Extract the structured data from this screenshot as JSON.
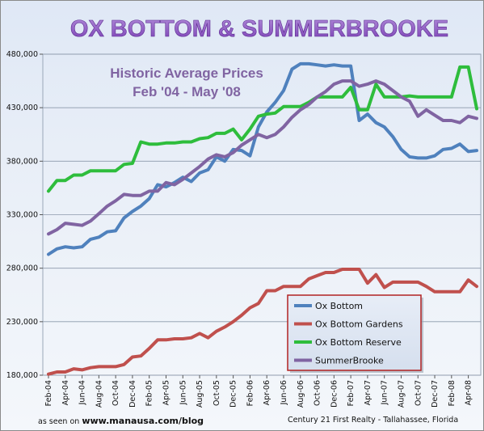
{
  "chart_data": {
    "type": "line",
    "title": "OX BOTTOM & SUMMERBROOKE",
    "subtitle_line1": "Historic Average Prices",
    "subtitle_line2": "Feb '04 - May '08",
    "ylim": [
      180000,
      480000
    ],
    "yticks": [
      "180,000",
      "230,000",
      "280,000",
      "330,000",
      "380,000",
      "430,000",
      "480,000"
    ],
    "ytick_values": [
      180000,
      230000,
      280000,
      330000,
      380000,
      430000,
      480000
    ],
    "x": [
      "Feb-04",
      "Mar-04",
      "Apr-04",
      "May-04",
      "Jun-04",
      "Jul-04",
      "Aug-04",
      "Sep-04",
      "Oct-04",
      "Nov-04",
      "Dec-04",
      "Jan-05",
      "Feb-05",
      "Mar-05",
      "Apr-05",
      "May-05",
      "Jun-05",
      "Jul-05",
      "Aug-05",
      "Sep-05",
      "Oct-05",
      "Nov-05",
      "Dec-05",
      "Jan-06",
      "Feb-06",
      "Mar-06",
      "Apr-06",
      "May-06",
      "Jun-06",
      "Jul-06",
      "Aug-06",
      "Sep-06",
      "Oct-06",
      "Nov-06",
      "Dec-06",
      "Jan-07",
      "Feb-07",
      "Mar-07",
      "Apr-07",
      "May-07",
      "Jun-07",
      "Jul-07",
      "Aug-07",
      "Sep-07",
      "Oct-07",
      "Nov-07",
      "Dec-07",
      "Jan-08",
      "Feb-08",
      "Mar-08",
      "Apr-08",
      "May-08"
    ],
    "xtick_labels": [
      "Feb-04",
      "Apr-04",
      "Jun-04",
      "Aug-04",
      "Oct-04",
      "Dec-04",
      "Feb-05",
      "Apr-05",
      "Jun-05",
      "Aug-05",
      "Oct-05",
      "Dec-05",
      "Feb-06",
      "Apr-06",
      "Jun-06",
      "Aug-06",
      "Oct-06",
      "Dec-06",
      "Feb-07",
      "Apr-07",
      "Jun-07",
      "Aug-07",
      "Oct-07",
      "Dec-07",
      "Feb-08",
      "Apr-08"
    ],
    "series": [
      {
        "name": "Ox Bottom",
        "color": "#4f81bd",
        "values": [
          293000,
          298000,
          300000,
          299000,
          300000,
          307000,
          309000,
          314000,
          315000,
          327000,
          333000,
          338000,
          345000,
          358000,
          356000,
          360000,
          365000,
          361000,
          369000,
          372000,
          384000,
          380000,
          391000,
          390000,
          385000,
          412000,
          426000,
          435000,
          446000,
          466000,
          471000,
          471000,
          470000,
          469000,
          470000,
          469000,
          469000,
          418000,
          424000,
          416000,
          412000,
          403000,
          391000,
          384000,
          383000,
          383000,
          385000,
          391000,
          392000,
          396000,
          389000,
          390000
        ]
      },
      {
        "name": "Ox Bottom Gardens",
        "color": "#c0504d",
        "values": [
          181000,
          183000,
          183000,
          186000,
          185000,
          187000,
          188000,
          188000,
          188000,
          190000,
          197000,
          198000,
          205000,
          213000,
          213000,
          214000,
          214000,
          215000,
          219000,
          215000,
          221000,
          225000,
          230000,
          236000,
          243000,
          247000,
          259000,
          259000,
          263000,
          263000,
          263000,
          270000,
          273000,
          276000,
          276000,
          279000,
          279000,
          279000,
          266000,
          274000,
          262000,
          267000,
          267000,
          267000,
          267000,
          263000,
          258000,
          258000,
          258000,
          258000,
          269000,
          263000
        ]
      },
      {
        "name": "Ox Bottom Reserve",
        "color": "#2ebd3c",
        "values": [
          352000,
          362000,
          362000,
          367000,
          367000,
          371000,
          371000,
          371000,
          371000,
          377000,
          378000,
          398000,
          396000,
          396000,
          397000,
          397000,
          398000,
          398000,
          401000,
          402000,
          406000,
          406000,
          410000,
          400000,
          410000,
          422000,
          424000,
          425000,
          431000,
          431000,
          431000,
          435000,
          440000,
          440000,
          440000,
          440000,
          449000,
          428000,
          428000,
          452000,
          440000,
          440000,
          440000,
          441000,
          440000,
          440000,
          440000,
          440000,
          440000,
          468000,
          468000,
          429000
        ]
      },
      {
        "name": "SummerBrooke",
        "color": "#8064a2",
        "values": [
          312000,
          316000,
          322000,
          321000,
          320000,
          324000,
          331000,
          338000,
          343000,
          349000,
          348000,
          348000,
          352000,
          352000,
          360000,
          358000,
          363000,
          369000,
          375000,
          382000,
          386000,
          384000,
          388000,
          395000,
          400000,
          405000,
          402000,
          405000,
          412000,
          421000,
          428000,
          433000,
          440000,
          445000,
          452000,
          455000,
          455000,
          450000,
          452000,
          455000,
          452000,
          446000,
          440000,
          436000,
          422000,
          428000,
          423000,
          418000,
          418000,
          416000,
          422000,
          420000
        ]
      }
    ],
    "legend_position": "bottom-center",
    "grid": "horizontal"
  },
  "footer": {
    "left_prefix": "as seen on",
    "left_site": "www.manausa.com/blog",
    "right": "Century 21 First Realty - Tallahassee, Florida"
  }
}
